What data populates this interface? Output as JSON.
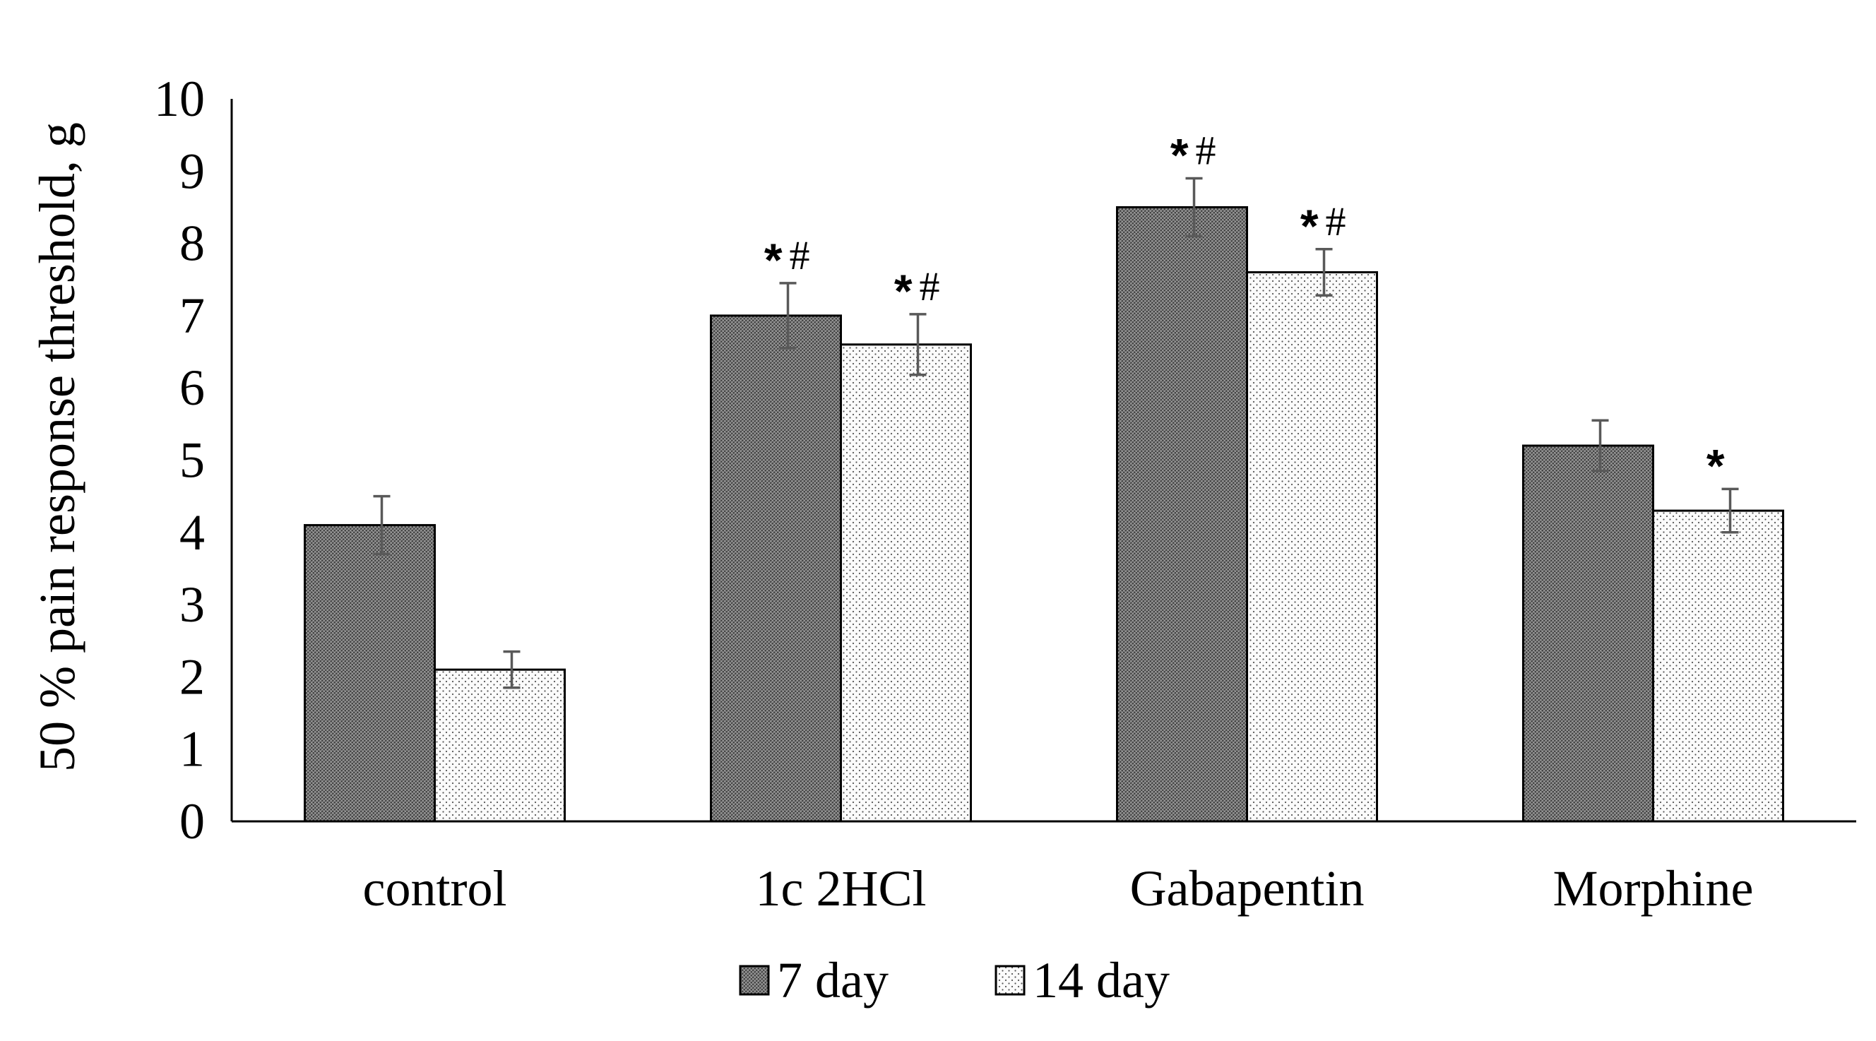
{
  "chart_data": {
    "type": "bar",
    "title": "",
    "xlabel": "",
    "ylabel": "50 % pain response threshold, g",
    "ylim": [
      0,
      10
    ],
    "yticks": [
      "0",
      "1",
      "2",
      "3",
      "4",
      "5",
      "6",
      "7",
      "8",
      "9",
      "10"
    ],
    "grid": false,
    "legend_position": "bottom",
    "categories": [
      "control",
      "1c 2HCl",
      "Gabapentin",
      "Morphine"
    ],
    "series": [
      {
        "name": "7 day",
        "values": [
          4.1,
          7.0,
          8.5,
          5.2
        ],
        "errors": [
          0.4,
          0.45,
          0.4,
          0.35
        ],
        "annotations": [
          {
            "star": "",
            "hash": ""
          },
          {
            "star": "*",
            "hash": "#"
          },
          {
            "star": "*",
            "hash": "#"
          },
          {
            "star": "",
            "hash": ""
          }
        ],
        "color": "#7a7a7a",
        "pattern": "dense-hatch"
      },
      {
        "name": "14 day",
        "values": [
          2.1,
          6.6,
          7.6,
          4.3
        ],
        "errors": [
          0.25,
          0.42,
          0.32,
          0.3
        ],
        "annotations": [
          {
            "star": "",
            "hash": ""
          },
          {
            "star": "*",
            "hash": "#"
          },
          {
            "star": "*",
            "hash": "#"
          },
          {
            "star": "*",
            "hash": ""
          }
        ],
        "color": "#f2f2f2",
        "pattern": "dots"
      }
    ],
    "colors": {
      "axis": "#000000",
      "error_bar": "#595959",
      "bar_outline": "#000000"
    }
  }
}
